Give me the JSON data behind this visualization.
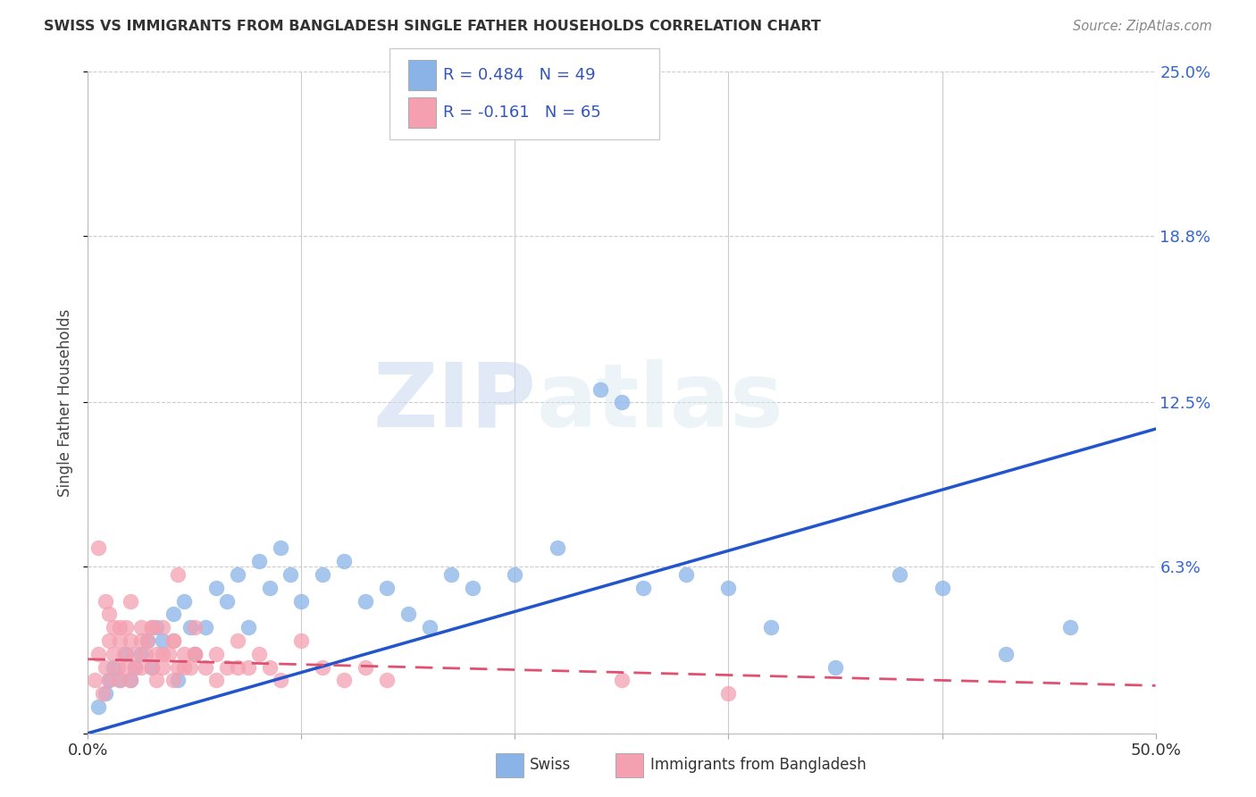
{
  "title": "SWISS VS IMMIGRANTS FROM BANGLADESH SINGLE FATHER HOUSEHOLDS CORRELATION CHART",
  "source": "Source: ZipAtlas.com",
  "ylabel": "Single Father Households",
  "xlim": [
    0.0,
    0.5
  ],
  "ylim": [
    0.0,
    0.25
  ],
  "yticks": [
    0.0,
    0.063,
    0.125,
    0.188,
    0.25
  ],
  "ytick_labels": [
    "",
    "6.3%",
    "12.5%",
    "18.8%",
    "25.0%"
  ],
  "xticks": [
    0.0,
    0.1,
    0.2,
    0.3,
    0.4,
    0.5
  ],
  "xtick_labels": [
    "0.0%",
    "",
    "",
    "",
    "",
    "50.0%"
  ],
  "legend_r1": "R = 0.484",
  "legend_n1": "N = 49",
  "legend_r2": "R = -0.161",
  "legend_n2": "N = 65",
  "watermark_zip": "ZIP",
  "watermark_atlas": "atlas",
  "label_swiss": "Swiss",
  "label_bangladesh": "Immigrants from Bangladesh",
  "blue_color": "#8ab4e8",
  "pink_color": "#f4a0b0",
  "blue_line_color": "#2255cc",
  "pink_line_color": "#e05070",
  "swiss_x": [
    0.005,
    0.008,
    0.01,
    0.012,
    0.015,
    0.018,
    0.02,
    0.022,
    0.025,
    0.028,
    0.03,
    0.032,
    0.035,
    0.04,
    0.042,
    0.045,
    0.048,
    0.05,
    0.055,
    0.06,
    0.065,
    0.07,
    0.075,
    0.08,
    0.085,
    0.09,
    0.095,
    0.1,
    0.11,
    0.12,
    0.13,
    0.14,
    0.15,
    0.16,
    0.17,
    0.18,
    0.2,
    0.22,
    0.24,
    0.25,
    0.26,
    0.28,
    0.3,
    0.32,
    0.35,
    0.38,
    0.4,
    0.43,
    0.46
  ],
  "swiss_y": [
    0.01,
    0.015,
    0.02,
    0.025,
    0.02,
    0.03,
    0.02,
    0.025,
    0.03,
    0.035,
    0.025,
    0.04,
    0.035,
    0.045,
    0.02,
    0.05,
    0.04,
    0.03,
    0.04,
    0.055,
    0.05,
    0.06,
    0.04,
    0.065,
    0.055,
    0.07,
    0.06,
    0.05,
    0.06,
    0.065,
    0.05,
    0.055,
    0.045,
    0.04,
    0.06,
    0.055,
    0.06,
    0.07,
    0.13,
    0.125,
    0.055,
    0.06,
    0.055,
    0.04,
    0.025,
    0.06,
    0.055,
    0.03,
    0.04
  ],
  "bangladesh_x": [
    0.003,
    0.005,
    0.007,
    0.008,
    0.01,
    0.01,
    0.012,
    0.012,
    0.014,
    0.015,
    0.015,
    0.017,
    0.018,
    0.018,
    0.02,
    0.02,
    0.022,
    0.022,
    0.025,
    0.025,
    0.027,
    0.028,
    0.03,
    0.03,
    0.032,
    0.032,
    0.035,
    0.035,
    0.038,
    0.04,
    0.04,
    0.042,
    0.042,
    0.045,
    0.048,
    0.05,
    0.05,
    0.055,
    0.06,
    0.065,
    0.07,
    0.075,
    0.08,
    0.085,
    0.09,
    0.1,
    0.11,
    0.12,
    0.13,
    0.14,
    0.005,
    0.008,
    0.01,
    0.015,
    0.02,
    0.025,
    0.03,
    0.035,
    0.04,
    0.045,
    0.05,
    0.06,
    0.07,
    0.25,
    0.3
  ],
  "bangladesh_y": [
    0.02,
    0.03,
    0.015,
    0.025,
    0.035,
    0.02,
    0.03,
    0.04,
    0.025,
    0.035,
    0.02,
    0.03,
    0.025,
    0.04,
    0.035,
    0.02,
    0.03,
    0.025,
    0.04,
    0.025,
    0.03,
    0.035,
    0.025,
    0.04,
    0.03,
    0.02,
    0.04,
    0.025,
    0.03,
    0.035,
    0.02,
    0.06,
    0.025,
    0.03,
    0.025,
    0.04,
    0.03,
    0.025,
    0.03,
    0.025,
    0.035,
    0.025,
    0.03,
    0.025,
    0.02,
    0.035,
    0.025,
    0.02,
    0.025,
    0.02,
    0.07,
    0.05,
    0.045,
    0.04,
    0.05,
    0.035,
    0.04,
    0.03,
    0.035,
    0.025,
    0.03,
    0.02,
    0.025,
    0.02,
    0.015
  ],
  "blue_trendline_x0": 0.0,
  "blue_trendline_y0": 0.0,
  "blue_trendline_x1": 0.5,
  "blue_trendline_y1": 0.115,
  "pink_trendline_x0": 0.0,
  "pink_trendline_y0": 0.028,
  "pink_trendline_x1": 0.5,
  "pink_trendline_y1": 0.018
}
